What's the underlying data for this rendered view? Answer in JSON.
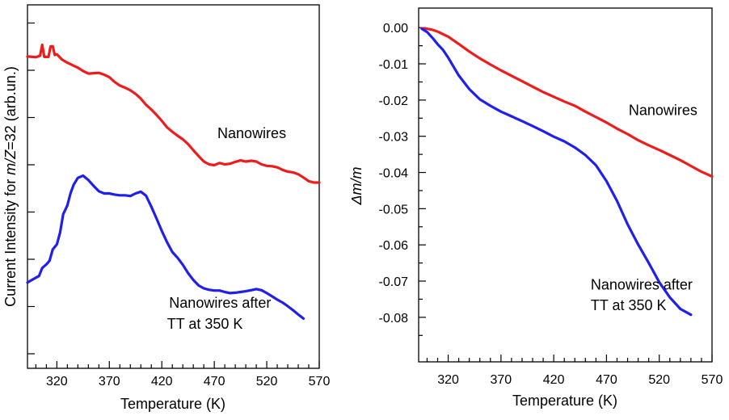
{
  "chart_data": [
    {
      "type": "line",
      "panel": "left",
      "xlabel": "Temperature (K)",
      "ylabel_parts": [
        "Current Intensity for ",
        "m/Z",
        "=32 (arb.un.)"
      ],
      "xlim": [
        292,
        570
      ],
      "ylim": [
        0,
        100
      ],
      "x_ticks": [
        320,
        370,
        420,
        470,
        520,
        570
      ],
      "y_ticks_unlabeled": [
        4,
        17,
        30,
        43,
        56,
        69,
        82,
        95
      ],
      "grid": false,
      "series": [
        {
          "name": "Nanowires",
          "color": "#ee1c1c",
          "x": [
            292,
            300,
            304,
            306,
            308,
            312,
            314,
            316,
            318,
            320,
            325,
            330,
            335,
            340,
            345,
            350,
            355,
            360,
            365,
            370,
            375,
            380,
            385,
            390,
            395,
            400,
            405,
            410,
            415,
            420,
            425,
            430,
            435,
            440,
            445,
            450,
            455,
            460,
            465,
            470,
            475,
            480,
            485,
            490,
            495,
            500,
            505,
            510,
            515,
            520,
            525,
            530,
            535,
            540,
            545,
            550,
            555,
            560,
            565,
            570
          ],
          "y": [
            85.8,
            85.6,
            86.0,
            89.0,
            85.7,
            85.7,
            88.6,
            88.6,
            86.2,
            86.4,
            84.9,
            84.1,
            83.4,
            82.7,
            81.8,
            81.1,
            81.2,
            81.3,
            80.8,
            80.1,
            78.8,
            77.8,
            77.2,
            76.5,
            75.5,
            74.2,
            72.5,
            71.2,
            69.7,
            68.1,
            66.3,
            65.1,
            64.0,
            63.0,
            61.7,
            60.0,
            58.4,
            56.9,
            56.1,
            55.9,
            56.5,
            56.1,
            56.3,
            56.8,
            57.2,
            56.9,
            57.1,
            56.9,
            56.1,
            55.7,
            55.6,
            55.3,
            54.6,
            54.1,
            53.9,
            53.4,
            52.5,
            51.5,
            51.1,
            51.1
          ]
        },
        {
          "name": "Nanowires after TT at 350 K",
          "color": "#1f1fee",
          "x": [
            292,
            298,
            303,
            306,
            310,
            313,
            316,
            320,
            323,
            326,
            330,
            333,
            336,
            340,
            345,
            350,
            355,
            360,
            365,
            370,
            375,
            380,
            385,
            390,
            395,
            400,
            405,
            410,
            415,
            420,
            425,
            430,
            435,
            440,
            445,
            450,
            455,
            460,
            465,
            470,
            475,
            480,
            485,
            490,
            495,
            500,
            505,
            510,
            515,
            520,
            525,
            530,
            535,
            540,
            545,
            550,
            555
          ],
          "y": [
            23.6,
            24.6,
            25.4,
            27.6,
            28.6,
            29.6,
            32.7,
            34.1,
            37.3,
            42.4,
            44.8,
            48.1,
            50.5,
            52.4,
            53.0,
            51.8,
            50.2,
            48.7,
            48.1,
            48.1,
            47.8,
            47.6,
            47.6,
            47.4,
            48.1,
            48.6,
            47.5,
            44.5,
            41.2,
            37.8,
            34.7,
            32.0,
            30.4,
            28.5,
            26.2,
            24.3,
            22.8,
            22.0,
            21.6,
            21.4,
            21.4,
            21.0,
            20.7,
            20.8,
            21.0,
            21.2,
            21.5,
            21.8,
            21.5,
            20.7,
            19.8,
            18.9,
            18.1,
            17.1,
            16.0,
            14.8,
            13.7
          ]
        }
      ],
      "annotations": [
        {
          "id": "label-nanowires",
          "text": "Nanowires",
          "x": 473,
          "y": 63.3
        },
        {
          "id": "label-tt-line1",
          "text": "Nanowires after",
          "x": 427,
          "y": 16.7
        },
        {
          "id": "label-tt-line2",
          "text": "TT at 350 K",
          "x": 425,
          "y": 10.9
        }
      ]
    },
    {
      "type": "line",
      "panel": "right",
      "xlabel": "Temperature (K)",
      "ylabel_parts": [
        "Δ",
        "m/m"
      ],
      "xlim": [
        292,
        570
      ],
      "ylim": [
        -0.0923,
        0.0054
      ],
      "x_ticks": [
        320,
        370,
        420,
        470,
        520,
        570
      ],
      "y_ticks": [
        0.0,
        -0.01,
        -0.02,
        -0.03,
        -0.04,
        -0.05,
        -0.06,
        -0.07,
        -0.08
      ],
      "y_tick_labels": [
        "0.00",
        "-0.01",
        "-0.02",
        "-0.03",
        "-0.04",
        "-0.05",
        "-0.06",
        "-0.07",
        "-0.08"
      ],
      "grid": false,
      "series": [
        {
          "name": "Nanowires",
          "color": "#ee1c1c",
          "x": [
            295,
            300,
            305,
            310,
            315,
            320,
            330,
            340,
            350,
            360,
            370,
            380,
            390,
            400,
            410,
            420,
            430,
            440,
            450,
            460,
            470,
            480,
            490,
            500,
            510,
            520,
            530,
            540,
            550,
            560,
            570
          ],
          "y": [
            -0.0002,
            -0.0003,
            -0.0006,
            -0.0011,
            -0.0018,
            -0.0025,
            -0.0045,
            -0.0066,
            -0.0085,
            -0.0102,
            -0.0118,
            -0.0133,
            -0.0148,
            -0.0163,
            -0.0178,
            -0.0191,
            -0.0204,
            -0.0216,
            -0.0232,
            -0.0247,
            -0.0262,
            -0.0279,
            -0.0294,
            -0.0311,
            -0.0325,
            -0.0338,
            -0.0352,
            -0.0366,
            -0.0382,
            -0.0398,
            -0.0411
          ]
        },
        {
          "name": "Nanowires after TT at 350 K",
          "color": "#1f1fee",
          "x": [
            295,
            300,
            305,
            310,
            315,
            320,
            330,
            340,
            350,
            360,
            370,
            380,
            390,
            400,
            410,
            420,
            430,
            440,
            450,
            460,
            470,
            480,
            490,
            500,
            510,
            520,
            530,
            540,
            550
          ],
          "y": [
            -0.0003,
            -0.0012,
            -0.0028,
            -0.0046,
            -0.0061,
            -0.0083,
            -0.0132,
            -0.017,
            -0.0198,
            -0.0216,
            -0.0232,
            -0.0245,
            -0.0258,
            -0.0272,
            -0.0286,
            -0.0301,
            -0.0314,
            -0.0331,
            -0.0352,
            -0.038,
            -0.0424,
            -0.0479,
            -0.0543,
            -0.0599,
            -0.065,
            -0.0703,
            -0.0745,
            -0.0777,
            -0.0793
          ]
        }
      ],
      "annotations": [
        {
          "id": "label-nanowires",
          "text": "Nanowires",
          "x": 491,
          "y": -0.0242
        },
        {
          "id": "label-tt-line1",
          "text": "Nanowires after",
          "x": 455,
          "y": -0.0723
        },
        {
          "id": "label-tt-line2",
          "text": "TT at 350 K",
          "x": 455,
          "y": -0.078
        }
      ]
    }
  ]
}
